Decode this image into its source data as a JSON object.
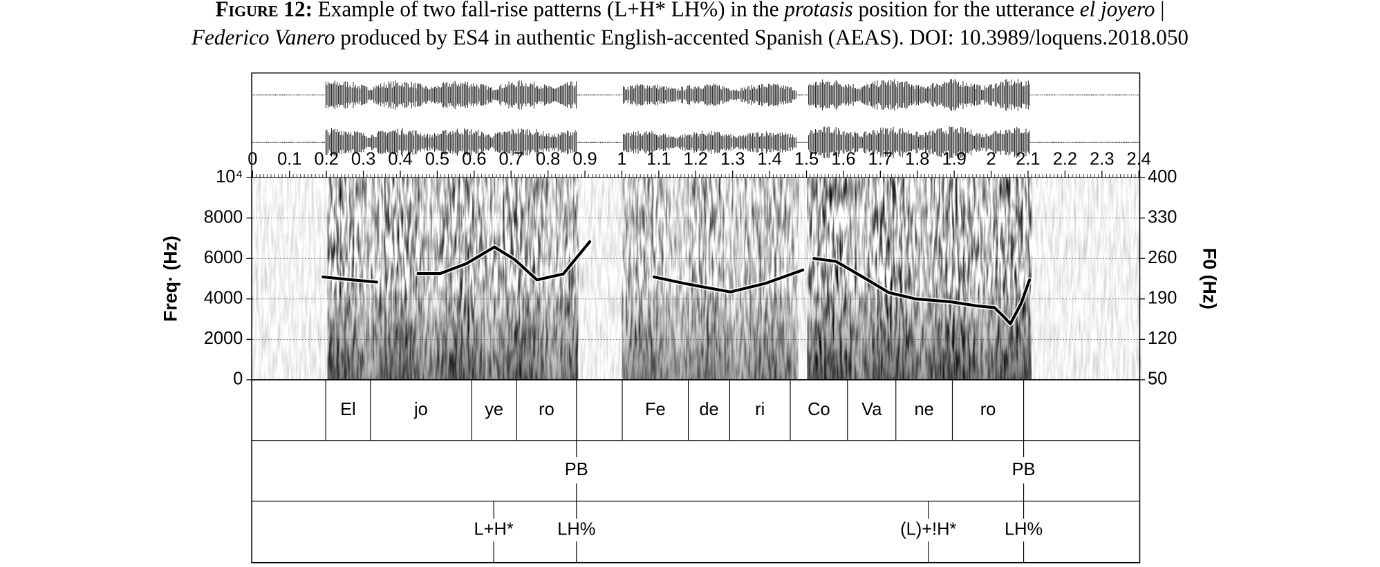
{
  "caption": [
    [
      {
        "text": "Figure 12:",
        "style": "smallcaps-bold"
      },
      {
        "text": " Example of two fall-rise patterns (L+H* LH%) in the ",
        "style": "normal"
      },
      {
        "text": "protasis",
        "style": "italic"
      },
      {
        "text": " position for the utterance ",
        "style": "normal"
      },
      {
        "text": "el joyero",
        "style": "italic"
      },
      {
        "text": " |",
        "style": "normal"
      }
    ],
    [
      {
        "text": "Federico Vanero",
        "style": "italic"
      },
      {
        "text": " produced by ES4 in authentic English-accented Spanish (AEAS). DOI: 10.3989/loquens.2018.050",
        "style": "normal"
      }
    ]
  ],
  "time_axis": {
    "xlim": [
      0,
      2.4
    ],
    "xticks": [
      0,
      0.1,
      0.2,
      0.3,
      0.4,
      0.5,
      0.6,
      0.7,
      0.8,
      0.9,
      1,
      1.1,
      1.2,
      1.3,
      1.4,
      1.5,
      1.6,
      1.7,
      1.8,
      1.9,
      2,
      2.1,
      2.2,
      2.3,
      2.4
    ]
  },
  "freq_axis": {
    "label": "Freq· (Hz)",
    "ylim": [
      0,
      10000
    ],
    "yticks": [
      0,
      2000,
      4000,
      6000,
      8000,
      {
        "value": 10000,
        "label": "10⁴"
      }
    ],
    "grid": true
  },
  "f0_axis": {
    "label": "F0 (Hz)",
    "ylim": [
      50,
      400
    ],
    "yticks": [
      50,
      120,
      190,
      260,
      330,
      400
    ]
  },
  "pitch": {
    "color": "#000000",
    "x": [
      0.191,
      0.269,
      0.336,
      null,
      0.448,
      0.508,
      0.579,
      0.655,
      0.71,
      0.77,
      0.841,
      0.913,
      null,
      1.087,
      1.175,
      1.294,
      1.389,
      1.49,
      null,
      1.52,
      1.58,
      1.652,
      1.723,
      1.795,
      1.89,
      1.961,
      2.009,
      2.033,
      2.052,
      2.081,
      2.104
    ],
    "values": [
      228,
      223,
      219,
      null,
      234,
      234,
      251,
      280,
      258,
      223,
      233,
      289,
      null,
      228,
      216,
      202,
      217,
      240,
      null,
      260,
      255,
      228,
      201,
      190,
      185,
      178,
      175,
      160,
      147,
      182,
      223
    ]
  },
  "tiers": [
    {
      "boundaries": [
        0.198,
        0.319,
        0.593,
        0.715,
        0.877,
        1.001,
        1.18,
        1.292,
        1.456,
        1.611,
        1.742,
        1.895,
        2.088
      ],
      "labels": [
        "El",
        "jo",
        "ye",
        "ro",
        null,
        "Fe",
        "de",
        "ri",
        "Co",
        "Va",
        "ne",
        "ro"
      ]
    },
    {
      "points": [
        {
          "time": 0.877,
          "label": "PB"
        },
        {
          "time": 2.088,
          "label": "PB"
        }
      ]
    },
    {
      "points": [
        {
          "time": 0.653,
          "label": "L+H*"
        },
        {
          "time": 0.877,
          "label": "LH%"
        },
        {
          "time": 1.83,
          "label": "(L)+!H*"
        },
        {
          "time": 2.088,
          "label": "LH%"
        }
      ]
    }
  ]
}
